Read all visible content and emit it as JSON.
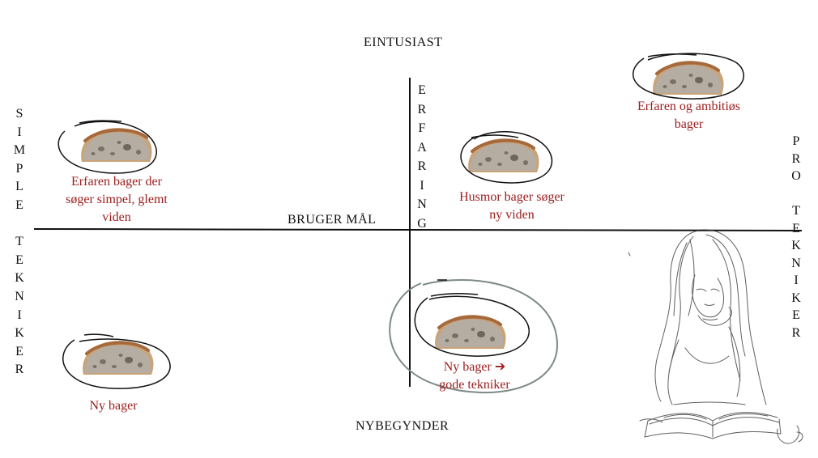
{
  "axes": {
    "top": "EINTUSIAST",
    "bottom": "NYBEGYNDER",
    "horizontal_center": "BRUGER MÅL",
    "vertical_center": "E\nR\nF\nA\nR\nI\nN\nG",
    "left": "S\nI\nM\nP\nL\nE\n\nT\nE\nK\nN\nI\nK\nE\nR",
    "right": "P\nR\nO\n\nT\nE\nK\nN\nI\nK\nE\nR"
  },
  "personas": [
    {
      "caption": "Erfaren bager der\nsøger simpel, glemt\nviden"
    },
    {
      "caption": "Husmor bager søger\nny viden"
    },
    {
      "caption": "Erfaren og ambitiøs\nbager"
    },
    {
      "caption": "Ny bager"
    },
    {
      "caption": "Ny bager ➔\ngode tekniker"
    }
  ],
  "colors": {
    "caption": "#9b1c1c",
    "axis": "#111111",
    "highlight_ring": "#7d8a88"
  }
}
